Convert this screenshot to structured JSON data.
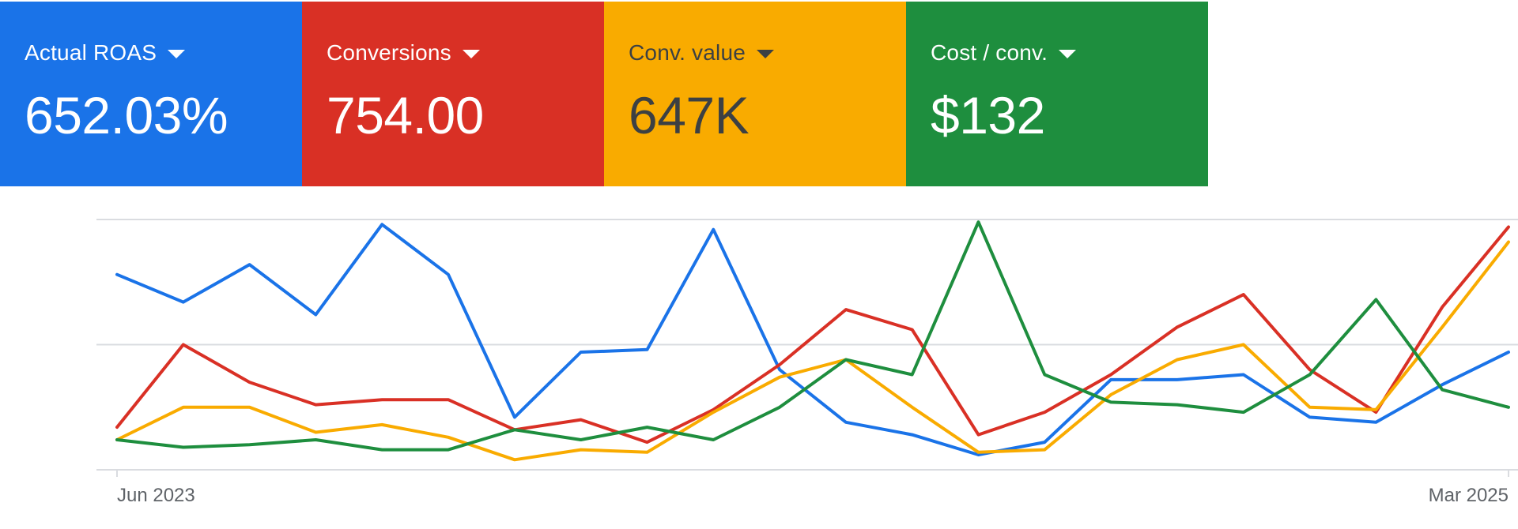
{
  "scorecards": [
    {
      "label": "Actual ROAS",
      "value": "652.03%",
      "bg": "#1a73e8",
      "fg": "#ffffff",
      "icon": "caret-down-icon"
    },
    {
      "label": "Conversions",
      "value": "754.00",
      "bg": "#d93025",
      "fg": "#ffffff",
      "icon": "caret-down-icon"
    },
    {
      "label": "Conv. value",
      "value": "647K",
      "bg": "#f9ab00",
      "fg": "#3c4043",
      "icon": "caret-down-icon"
    },
    {
      "label": "Cost / conv.",
      "value": "$132",
      "bg": "#1e8e3e",
      "fg": "#ffffff",
      "icon": "caret-down-icon"
    }
  ],
  "chart_data": {
    "type": "line",
    "x_tick_labels": [
      "Jun 2023",
      "Mar 2025"
    ],
    "x_count": 22,
    "grid": true,
    "grid_lines": 3,
    "y_axis_labels_visible": false,
    "series": [
      {
        "color": "#1a73e8",
        "values": [
          78,
          67,
          82,
          62,
          98,
          78,
          21,
          47,
          48,
          96,
          40,
          19,
          14,
          6,
          11,
          36,
          36,
          38,
          21,
          19,
          34,
          47
        ]
      },
      {
        "color": "#d93025",
        "values": [
          17,
          50,
          35,
          26,
          28,
          28,
          16,
          20,
          11,
          24,
          42,
          64,
          56,
          14,
          23,
          38,
          57,
          70,
          40,
          23,
          65,
          97
        ]
      },
      {
        "color": "#f9ab00",
        "values": [
          12,
          25,
          25,
          15,
          18,
          13,
          4,
          8,
          7,
          23,
          37,
          44,
          25,
          7,
          8,
          30,
          44,
          50,
          25,
          24,
          57,
          91
        ]
      },
      {
        "color": "#1e8e3e",
        "values": [
          12,
          9,
          10,
          12,
          8,
          8,
          16,
          12,
          17,
          12,
          25,
          44,
          38,
          99,
          38,
          27,
          26,
          23,
          38,
          68,
          32,
          25
        ]
      }
    ]
  }
}
